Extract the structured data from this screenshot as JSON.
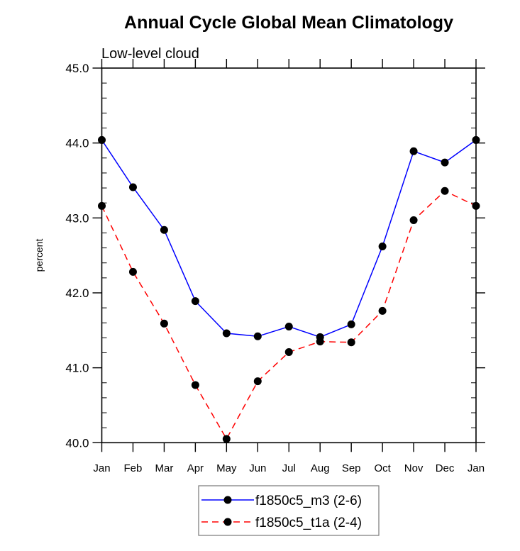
{
  "chart_data": {
    "type": "line",
    "title": "Annual Cycle Global Mean Climatology",
    "subtitle": "Low-level cloud",
    "xlabel": "",
    "ylabel": "percent",
    "categories": [
      "Jan",
      "Feb",
      "Mar",
      "Apr",
      "May",
      "Jun",
      "Jul",
      "Aug",
      "Sep",
      "Oct",
      "Nov",
      "Dec",
      "Jan"
    ],
    "ylim": [
      40.0,
      45.0
    ],
    "yticks": [
      "40.0",
      "41.0",
      "42.0",
      "43.0",
      "44.0",
      "45.0"
    ],
    "ytick_values": [
      40,
      41,
      42,
      43,
      44,
      45
    ],
    "yminor_step": 0.2,
    "grid": false,
    "legend_position": "bottom-center",
    "series": [
      {
        "name": "f1850c5_m3 (2-6)",
        "color": "#0000ff",
        "line_style": "solid",
        "marker": "filled-circle",
        "values": [
          44.04,
          43.41,
          42.84,
          41.89,
          41.46,
          41.42,
          41.55,
          41.41,
          41.58,
          42.62,
          43.89,
          43.74,
          44.04
        ]
      },
      {
        "name": "f1850c5_t1a (2-4)",
        "color": "#ff0000",
        "line_style": "dashed",
        "marker": "filled-circle",
        "values": [
          43.16,
          42.28,
          41.59,
          40.77,
          40.05,
          40.82,
          41.21,
          41.35,
          41.34,
          41.76,
          42.97,
          43.36,
          43.16
        ]
      }
    ]
  }
}
